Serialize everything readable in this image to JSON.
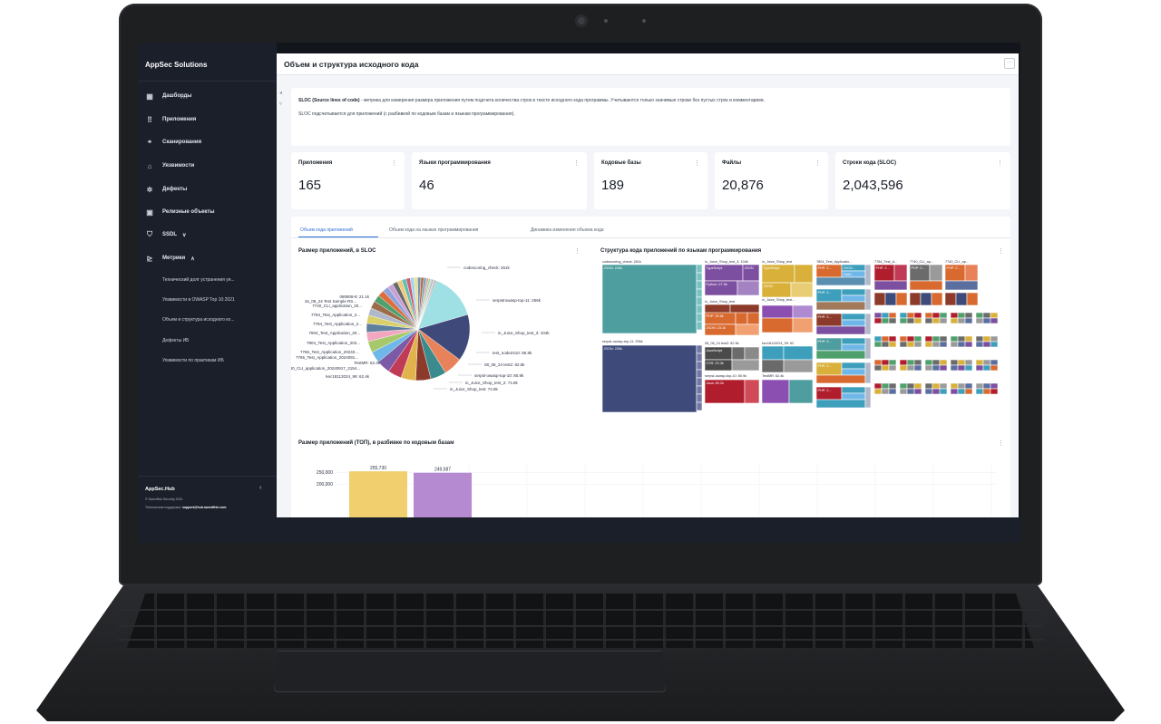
{
  "brand": "AppSec Solutions",
  "nav": [
    {
      "label": "Дашборды",
      "icon": "dashboard-icon"
    },
    {
      "label": "Приложения",
      "icon": "grid-icon"
    },
    {
      "label": "Сканирования",
      "icon": "scan-icon"
    },
    {
      "label": "Уязвимости",
      "icon": "lock-icon"
    },
    {
      "label": "Дефекты",
      "icon": "bug-icon"
    },
    {
      "label": "Релизные объекты",
      "icon": "release-icon"
    },
    {
      "label": "SSDL",
      "icon": "shield-icon",
      "chevron": "∨"
    },
    {
      "label": "Метрики",
      "icon": "metrics-icon",
      "chevron": "∧"
    }
  ],
  "metrics_sub": [
    "Технический долг устранения уя...",
    "Уязвимости в OWASP Top 10:2021",
    "Объем и структура исходного ко...",
    "Дефекты ИБ",
    "Уязвимости по практикам ИБ"
  ],
  "footer": {
    "hub": "AppSec.Hub",
    "collapse": "‹",
    "copyright": "© Swordfish Security 2024",
    "support_label": "Техническая поддержка:",
    "support_email": "support@hub.swordfish.com"
  },
  "page_title": "Объем и структура исходного кода",
  "more_button": "···",
  "info": {
    "lead": "SLOC (Source lines of code)",
    "text": " - метрика для измерения размера приложения путем подсчета количества строк в тексте исходного кода программы. Учитываются только значимые строки без пустых строк и комментариев.",
    "line2": "SLOC подсчитывается для приложений (с разбивкой по кодовым базам и языкам программирования)."
  },
  "stats": [
    {
      "label": "Приложения",
      "value": "165"
    },
    {
      "label": "Языки программирования",
      "value": "46"
    },
    {
      "label": "Кодовые базы",
      "value": "189"
    },
    {
      "label": "Файлы",
      "value": "20,876"
    },
    {
      "label": "Строки кода (SLOC)",
      "value": "2,043,596"
    }
  ],
  "tabs": [
    "Объем кода приложений",
    "Объем кода на языках программирования",
    "Динамика изменения объема кода"
  ],
  "colors": {
    "accent": "#2f6fd6",
    "sidebar": "#1a1f2a",
    "background": "#f3f5f8"
  },
  "chart_data": [
    {
      "type": "pie",
      "title": "Размер приложений, в SLOC",
      "labels_right": [
        "codescoring_check: 261k",
        "serpstrowasp-top-11: 256k",
        "in_Juice_Shop_test_3: 104k",
        "test_node2410: 85.8k",
        "08_08_24 test2: 82.5k",
        "serpsl-owasp-top-10: 80.9k",
        "in_Juice_Shop_test_2: 74.8k",
        "in_Juice_Shop_test: 74.8k"
      ],
      "labels_left": [
        "080808-8: 21.1k",
        "15_08_24 Test Sample RS...",
        "7740_CLI_application_20...",
        "7784_Test_Application_2...",
        "7784_Test_Application_2...",
        "7804_Test_Application_20...",
        "7804_Test_Application_202...",
        "7765_Test_Application_20240...",
        "7765_Test_Application_2024091...",
        "TestMR: 62.4k",
        "7740_CLI_application_20240917_2154...",
        "kec18112024_99: 62.4k"
      ],
      "values": [
        261,
        256,
        104,
        85.8,
        82.5,
        80.9,
        74.8,
        74.8,
        62.4,
        62.4,
        50,
        48,
        45,
        42,
        40,
        38,
        35,
        33,
        30,
        28,
        26,
        24,
        22,
        21.1,
        20,
        18,
        16,
        14,
        12,
        10,
        9,
        8,
        7,
        6
      ]
    },
    {
      "type": "heatmap",
      "title": "Структура кода приложений по языкам программирования",
      "labels": [
        "codescoring_check: 261k",
        "JSON: 240k",
        "serpst-owasp-top-11: 256k",
        "JSON: 230k",
        "in_Juice_Shop_test_3: 104k",
        "TypeScript",
        "JSON",
        "Python: 27.9k",
        "in_Juice_Shop_test",
        "TypeScript",
        "JSON: 29.5k",
        "test_node2410: 85.8k",
        "PHP: 25.6k",
        "JSON: 23.1k",
        "08_08_24 test2: 82.5k",
        "JavaScript",
        "CSS: 23.3k",
        "serpst-owasp-top-10: 80.9k",
        "Java: 60.2k",
        "in_Juice_Shop_test",
        "TypeScript",
        "JSON",
        "kec18112024_99: 62",
        "TestMR: 62.4k",
        "7804_Test_Applicatio...",
        "PHP: 2...",
        "JSON...",
        "Yaml...",
        "7784_Test_A...",
        "7740_CLI_ap...",
        "7740_CLI_ap..."
      ]
    },
    {
      "type": "bar",
      "title": "Размер приложений (ТОП), в разбивке по кодовым базам",
      "ylim": [
        0,
        260000
      ],
      "yticks": [
        "250,000",
        "200,000"
      ],
      "values": [
        255730,
        249587
      ],
      "value_labels": [
        "255,730",
        "249,587"
      ],
      "colors": [
        "#f2cf6e",
        "#b58ad0"
      ]
    }
  ],
  "menu_glyph": "⋮"
}
